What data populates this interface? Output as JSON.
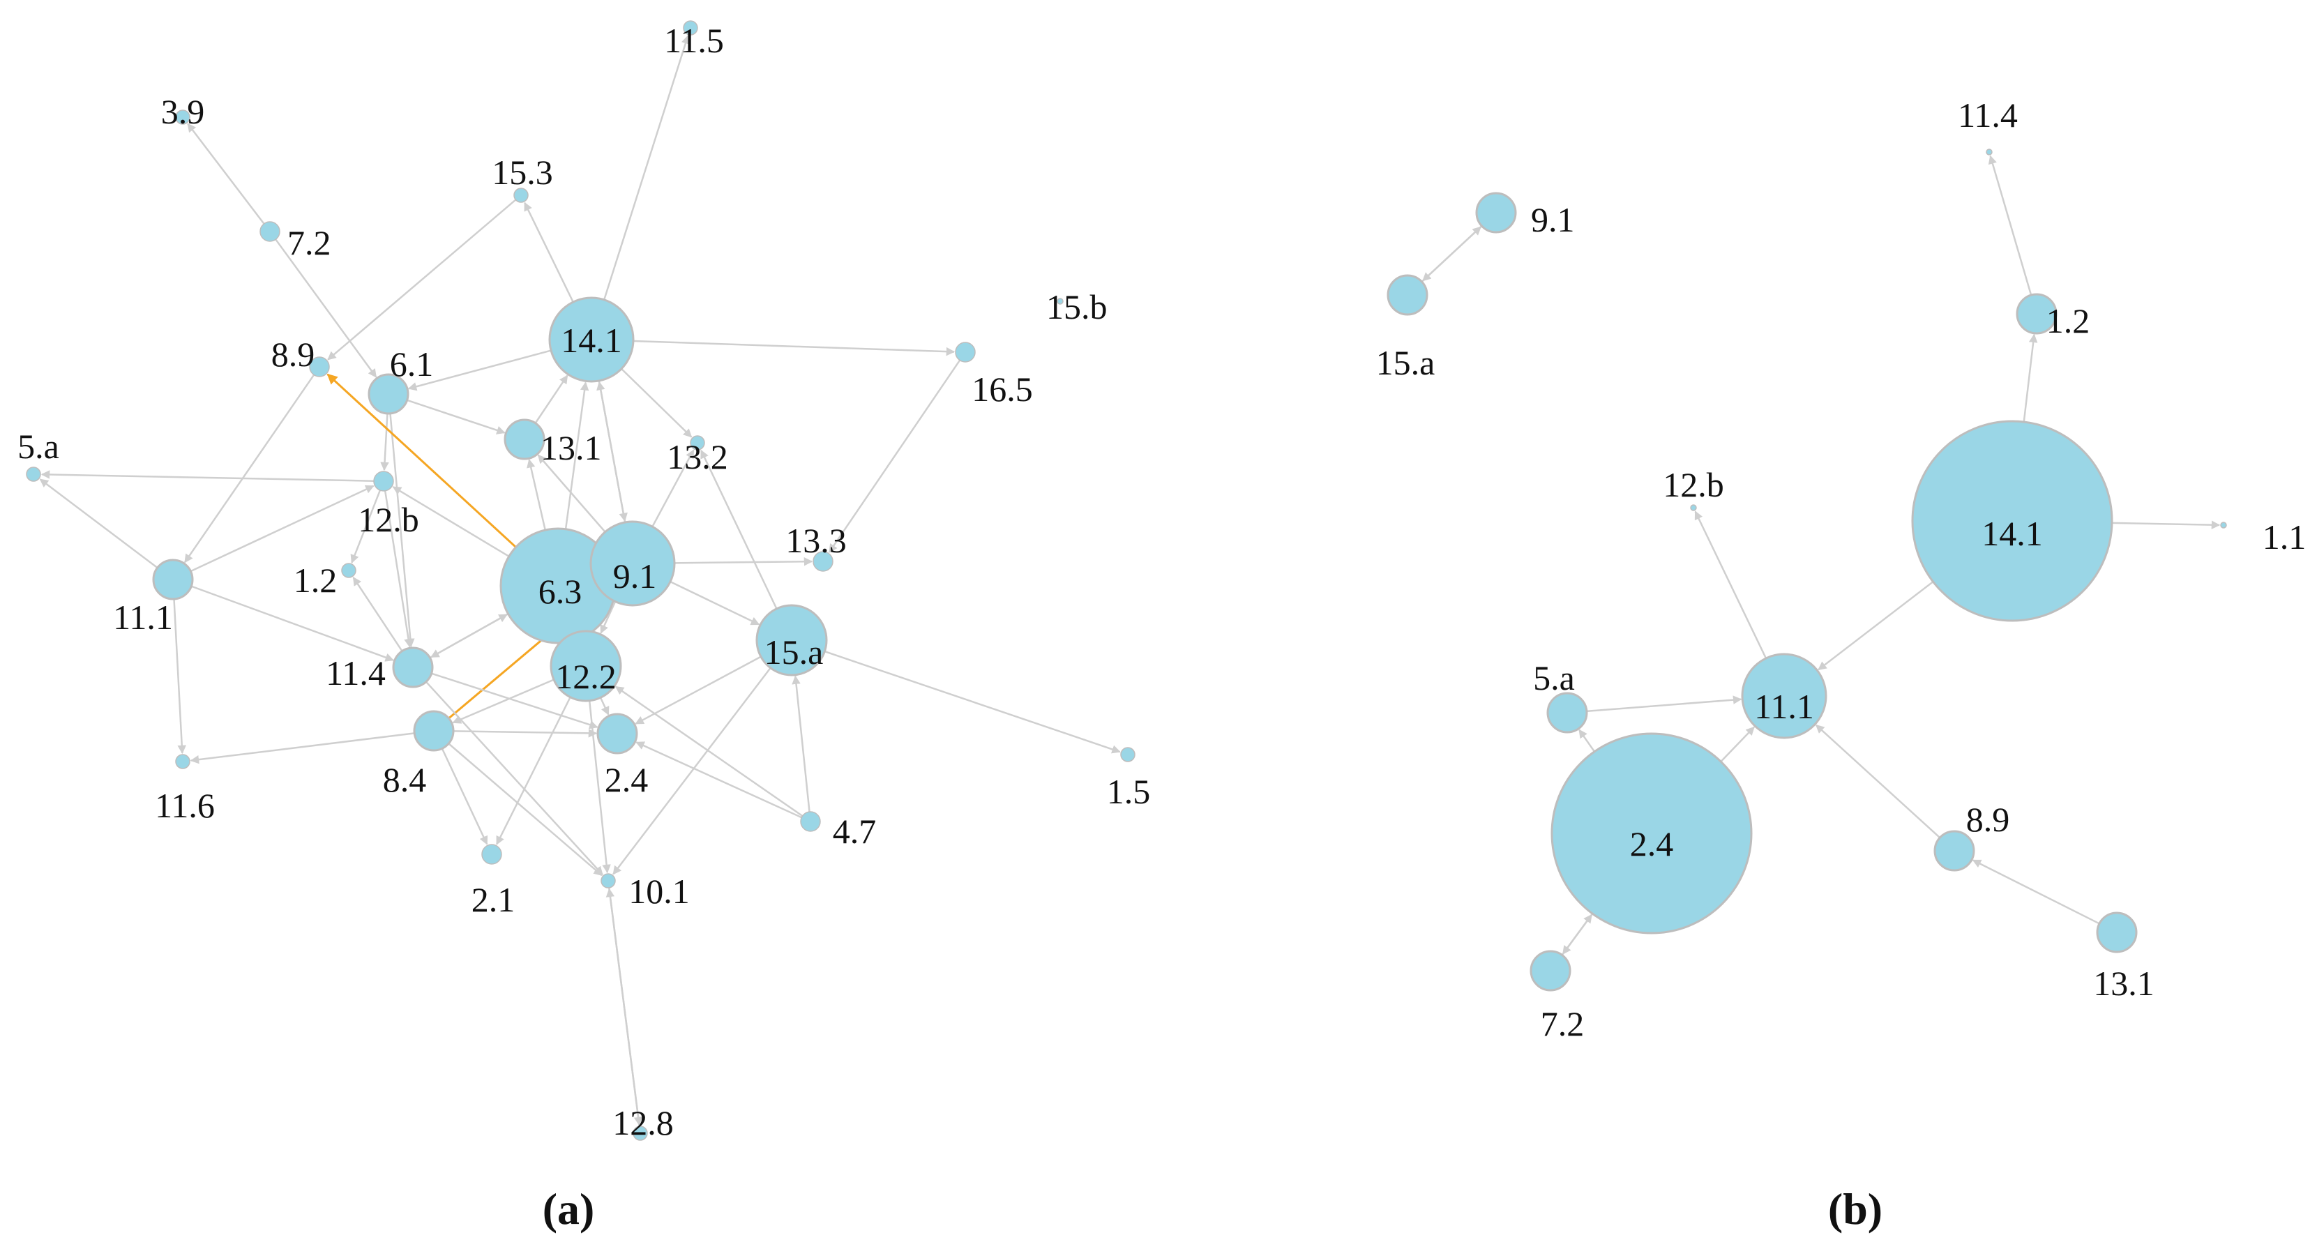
{
  "colors": {
    "node_fill": "#9AD6E6",
    "node_stroke": "#BDBDBD",
    "edge": "#CFCFCF",
    "edge_highlight": "#F5A623",
    "text": "#111111"
  },
  "panels": [
    {
      "id": "a",
      "caption": "(a)",
      "nodes": [
        {
          "id": "3.9",
          "label": "3.9",
          "size": 1
        },
        {
          "id": "11.5",
          "label": "11.5",
          "size": 1
        },
        {
          "id": "7.2",
          "label": "7.2",
          "size": 2
        },
        {
          "id": "15.3",
          "label": "15.3",
          "size": 1
        },
        {
          "id": "15.b",
          "label": "15.b",
          "size": 0
        },
        {
          "id": "14.1",
          "label": "14.1",
          "size": 6
        },
        {
          "id": "8.9",
          "label": "8.9",
          "size": 2
        },
        {
          "id": "6.1",
          "label": "6.1",
          "size": 3
        },
        {
          "id": "16.5",
          "label": "16.5",
          "size": 2
        },
        {
          "id": "5.a",
          "label": "5.a",
          "size": 1
        },
        {
          "id": "13.1",
          "label": "13.1",
          "size": 3
        },
        {
          "id": "13.2",
          "label": "13.2",
          "size": 1
        },
        {
          "id": "12.b",
          "label": "12.b",
          "size": 2
        },
        {
          "id": "13.3",
          "label": "13.3",
          "size": 2
        },
        {
          "id": "6.3",
          "label": "6.3",
          "size": 8
        },
        {
          "id": "9.1",
          "label": "9.1",
          "size": 6
        },
        {
          "id": "1.2",
          "label": "1.2",
          "size": 1
        },
        {
          "id": "11.1",
          "label": "11.1",
          "size": 3
        },
        {
          "id": "12.2",
          "label": "12.2",
          "size": 5
        },
        {
          "id": "15.a",
          "label": "15.a",
          "size": 5
        },
        {
          "id": "11.4",
          "label": "11.4",
          "size": 3
        },
        {
          "id": "8.4",
          "label": "8.4",
          "size": 3
        },
        {
          "id": "2.4",
          "label": "2.4",
          "size": 3
        },
        {
          "id": "1.5",
          "label": "1.5",
          "size": 1
        },
        {
          "id": "11.6",
          "label": "11.6",
          "size": 1
        },
        {
          "id": "4.7",
          "label": "4.7",
          "size": 2
        },
        {
          "id": "2.1",
          "label": "2.1",
          "size": 2
        },
        {
          "id": "10.1",
          "label": "10.1",
          "size": 1
        },
        {
          "id": "12.8",
          "label": "12.8",
          "size": 1
        }
      ],
      "edges": [
        {
          "from": "7.2",
          "to": "3.9"
        },
        {
          "from": "14.1",
          "to": "11.5"
        },
        {
          "from": "14.1",
          "to": "15.3"
        },
        {
          "from": "14.1",
          "to": "16.5"
        },
        {
          "from": "14.1",
          "to": "6.1"
        },
        {
          "from": "14.1",
          "to": "13.2"
        },
        {
          "from": "7.2",
          "to": "6.1"
        },
        {
          "from": "15.3",
          "to": "8.9"
        },
        {
          "from": "6.1",
          "to": "12.b"
        },
        {
          "from": "6.1",
          "to": "13.1"
        },
        {
          "from": "13.1",
          "to": "14.1"
        },
        {
          "from": "12.b",
          "to": "5.a"
        },
        {
          "from": "11.1",
          "to": "5.a"
        },
        {
          "from": "8.9",
          "to": "11.1"
        },
        {
          "from": "11.1",
          "to": "12.b"
        },
        {
          "from": "11.1",
          "to": "11.6"
        },
        {
          "from": "11.1",
          "to": "11.4"
        },
        {
          "from": "12.b",
          "to": "1.2"
        },
        {
          "from": "12.b",
          "to": "11.4"
        },
        {
          "from": "6.1",
          "to": "11.4"
        },
        {
          "from": "6.3",
          "to": "8.9",
          "highlight": true
        },
        {
          "from": "8.4",
          "to": "9.1",
          "highlight": true
        },
        {
          "from": "6.3",
          "to": "13.1"
        },
        {
          "from": "9.1",
          "to": "13.1"
        },
        {
          "from": "9.1",
          "to": "13.2"
        },
        {
          "from": "9.1",
          "to": "13.3"
        },
        {
          "from": "9.1",
          "to": "15.a"
        },
        {
          "from": "9.1",
          "to": "14.1"
        },
        {
          "from": "6.3",
          "to": "11.4"
        },
        {
          "from": "6.3",
          "to": "12.b"
        },
        {
          "from": "12.2",
          "to": "2.4"
        },
        {
          "from": "12.2",
          "to": "8.4"
        },
        {
          "from": "12.2",
          "to": "2.1"
        },
        {
          "from": "15.a",
          "to": "1.5"
        },
        {
          "from": "15.a",
          "to": "13.2"
        },
        {
          "from": "15.a",
          "to": "2.4"
        },
        {
          "from": "15.a",
          "to": "10.1"
        },
        {
          "from": "4.7",
          "to": "15.a"
        },
        {
          "from": "4.7",
          "to": "2.4"
        },
        {
          "from": "4.7",
          "to": "12.2"
        },
        {
          "from": "16.5",
          "to": "13.3"
        },
        {
          "from": "8.4",
          "to": "11.6"
        },
        {
          "from": "8.4",
          "to": "2.1"
        },
        {
          "from": "8.4",
          "to": "10.1"
        },
        {
          "from": "8.4",
          "to": "2.4"
        },
        {
          "from": "11.4",
          "to": "2.4"
        },
        {
          "from": "11.4",
          "to": "10.1"
        },
        {
          "from": "10.1",
          "to": "12.8"
        },
        {
          "from": "12.8",
          "to": "10.1"
        },
        {
          "from": "12.2",
          "to": "10.1"
        },
        {
          "from": "11.4",
          "to": "1.2"
        },
        {
          "from": "9.1",
          "to": "12.2"
        },
        {
          "from": "14.1",
          "to": "9.1"
        },
        {
          "from": "11.4",
          "to": "6.3"
        },
        {
          "from": "6.3",
          "to": "14.1"
        }
      ]
    },
    {
      "id": "b",
      "caption": "(b)",
      "nodes": [
        {
          "id": "11.4",
          "label": "11.4",
          "size": 0
        },
        {
          "id": "9.1",
          "label": "9.1",
          "size": 3
        },
        {
          "id": "15.a",
          "label": "15.a",
          "size": 3
        },
        {
          "id": "1.2",
          "label": "1.2",
          "size": 3
        },
        {
          "id": "12.b",
          "label": "12.b",
          "size": 0
        },
        {
          "id": "14.1",
          "label": "14.1",
          "size": 14
        },
        {
          "id": "1.1",
          "label": "1.1",
          "size": 0
        },
        {
          "id": "5.a",
          "label": "5.a",
          "size": 3
        },
        {
          "id": "11.1",
          "label": "11.1",
          "size": 6
        },
        {
          "id": "2.4",
          "label": "2.4",
          "size": 9
        },
        {
          "id": "8.9",
          "label": "8.9",
          "size": 3
        },
        {
          "id": "13.1",
          "label": "13.1",
          "size": 3
        },
        {
          "id": "7.2",
          "label": "7.2",
          "size": 3
        }
      ],
      "edges": [
        {
          "from": "15.a",
          "to": "9.1"
        },
        {
          "from": "9.1",
          "to": "15.a"
        },
        {
          "from": "14.1",
          "to": "1.2"
        },
        {
          "from": "1.2",
          "to": "11.4"
        },
        {
          "from": "14.1",
          "to": "1.1"
        },
        {
          "from": "14.1",
          "to": "11.1"
        },
        {
          "from": "11.1",
          "to": "12.b"
        },
        {
          "from": "5.a",
          "to": "11.1"
        },
        {
          "from": "2.4",
          "to": "11.1"
        },
        {
          "from": "2.4",
          "to": "5.a"
        },
        {
          "from": "2.4",
          "to": "7.2"
        },
        {
          "from": "7.2",
          "to": "2.4"
        },
        {
          "from": "8.9",
          "to": "11.1"
        },
        {
          "from": "13.1",
          "to": "8.9"
        }
      ]
    }
  ]
}
